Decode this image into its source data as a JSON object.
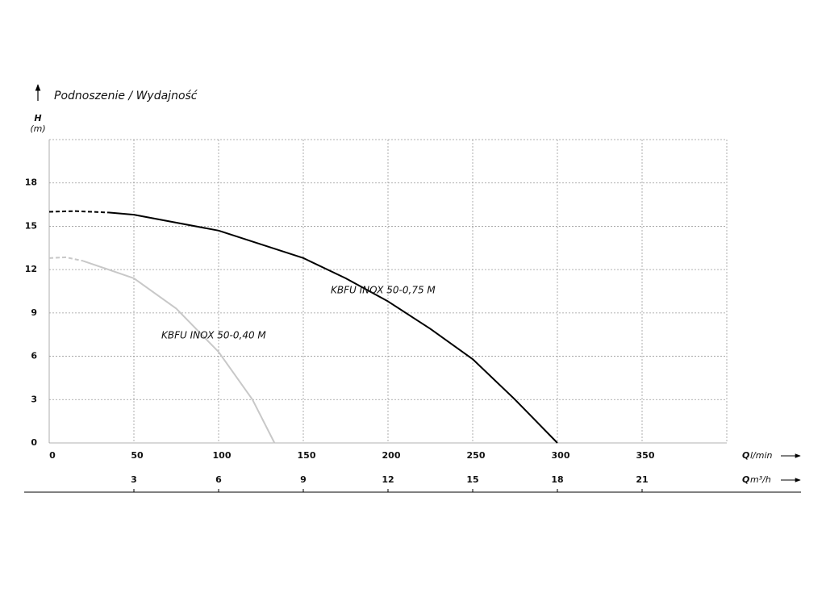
{
  "chart_data": {
    "type": "line",
    "title": "Podnoszenie / Wydajność",
    "y_label": "H",
    "y_unit": "(m)",
    "x_label": "Q",
    "x_unit": "l/min",
    "x2_label": "Q",
    "x2_unit": "m³/h",
    "xlim": [
      0,
      400
    ],
    "xticks": [
      0,
      50,
      100,
      150,
      200,
      250,
      300,
      350
    ],
    "x2lim": [
      0,
      24
    ],
    "x2ticks": [
      3,
      6,
      9,
      12,
      15,
      18,
      21
    ],
    "ylim": [
      0,
      21
    ],
    "yticks": [
      0,
      3,
      6,
      9,
      12,
      15,
      18
    ],
    "grid": true,
    "series": [
      {
        "name": "KBFU INOX 50-0,75 M",
        "color": "#000000",
        "dash_to_x": 35,
        "x": [
          0,
          15,
          35,
          50,
          100,
          150,
          175,
          200,
          225,
          250,
          275,
          300
        ],
        "values": [
          16.0,
          16.05,
          15.95,
          15.8,
          14.7,
          12.8,
          11.4,
          9.8,
          7.9,
          5.8,
          3.0,
          0
        ]
      },
      {
        "name": "KBFU INOX 50-0,40 M",
        "color": "#c8c8c8",
        "dash_to_x": 20,
        "x": [
          0,
          10,
          20,
          50,
          75,
          100,
          120,
          133
        ],
        "values": [
          12.8,
          12.85,
          12.6,
          11.4,
          9.3,
          6.3,
          3.0,
          0
        ]
      }
    ]
  }
}
